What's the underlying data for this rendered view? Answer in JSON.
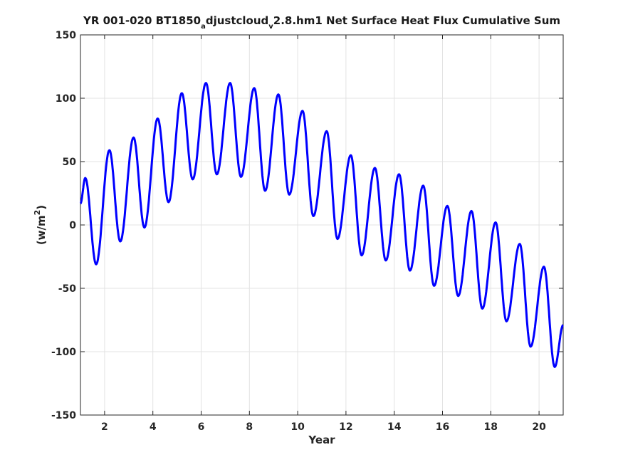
{
  "chart_data": {
    "type": "line",
    "title_main": "YR 001-020 BT1850",
    "title_sub1": "a",
    "title_mid": "djustcloud",
    "title_sub2": "v",
    "title_end": "2.8.hm1 Net Surface Heat Flux  Cumulative Sum",
    "xlabel": "Year",
    "ylabel_main": "(w/m",
    "ylabel_sup": "2",
    "ylabel_end": ")",
    "xlim": [
      1,
      21
    ],
    "ylim": [
      -150,
      150
    ],
    "xticks": [
      2,
      4,
      6,
      8,
      10,
      12,
      14,
      16,
      18,
      20
    ],
    "yticks": [
      -150,
      -100,
      -50,
      0,
      50,
      100,
      150
    ],
    "grid": true,
    "line_color": "#0000ff",
    "peaks": [
      [
        1.2,
        37
      ],
      [
        2.2,
        59
      ],
      [
        3.2,
        69
      ],
      [
        4.2,
        84
      ],
      [
        5.2,
        104
      ],
      [
        6.2,
        112
      ],
      [
        7.2,
        112
      ],
      [
        8.2,
        108
      ],
      [
        9.2,
        103
      ],
      [
        10.2,
        90
      ],
      [
        11.2,
        74
      ],
      [
        12.2,
        55
      ],
      [
        13.2,
        45
      ],
      [
        14.2,
        40
      ],
      [
        15.2,
        31
      ],
      [
        16.2,
        15
      ],
      [
        17.2,
        11
      ],
      [
        18.2,
        2
      ],
      [
        19.2,
        -15
      ],
      [
        20.2,
        -33
      ]
    ],
    "troughs": [
      [
        1.65,
        -31
      ],
      [
        2.65,
        -13
      ],
      [
        3.65,
        -2
      ],
      [
        4.65,
        18
      ],
      [
        5.65,
        36
      ],
      [
        6.65,
        40
      ],
      [
        7.65,
        38
      ],
      [
        8.65,
        27
      ],
      [
        9.65,
        24
      ],
      [
        10.65,
        7
      ],
      [
        11.65,
        -11
      ],
      [
        12.65,
        -24
      ],
      [
        13.65,
        -28
      ],
      [
        14.65,
        -36
      ],
      [
        15.65,
        -48
      ],
      [
        16.65,
        -56
      ],
      [
        17.65,
        -66
      ],
      [
        18.65,
        -76
      ],
      [
        19.65,
        -96
      ],
      [
        20.65,
        -112
      ]
    ],
    "start": [
      1.0,
      17
    ],
    "end": [
      21.0,
      -79
    ]
  }
}
